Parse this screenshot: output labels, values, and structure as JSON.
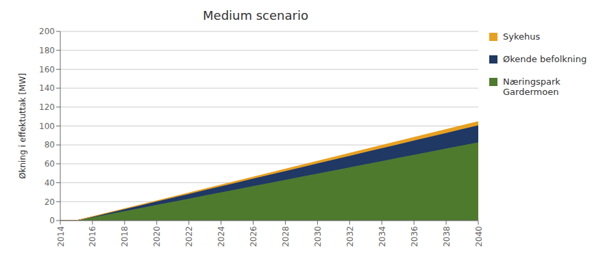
{
  "chart_data": {
    "type": "area",
    "stacked": true,
    "title": "Medium scenario",
    "ylabel": "Økning i effektuttak  [MW]",
    "x": [
      2014,
      2015,
      2016,
      2017,
      2018,
      2019,
      2020,
      2021,
      2022,
      2023,
      2024,
      2025,
      2026,
      2027,
      2028,
      2029,
      2030,
      2031,
      2032,
      2033,
      2034,
      2035,
      2036,
      2037,
      2038,
      2039,
      2040
    ],
    "series": [
      {
        "name": "Næringspark\nGardermoen",
        "color": "#4e7a2e",
        "values": [
          0,
          0.0,
          3.31,
          6.62,
          9.93,
          13.24,
          16.54,
          19.85,
          23.16,
          26.47,
          29.78,
          33.09,
          36.4,
          39.71,
          43.02,
          46.32,
          49.63,
          52.94,
          56.25,
          59.56,
          62.87,
          66.18,
          69.49,
          72.8,
          76.1,
          79.41,
          82.72
        ]
      },
      {
        "name": "Økende befolkning",
        "color": "#1f3864",
        "values": [
          0,
          0.0,
          0.72,
          1.44,
          2.16,
          2.88,
          3.6,
          4.32,
          5.04,
          5.76,
          6.48,
          7.2,
          7.92,
          8.64,
          9.36,
          10.08,
          10.8,
          11.52,
          12.24,
          12.96,
          13.68,
          14.4,
          15.12,
          15.84,
          16.56,
          17.28,
          18.0
        ]
      },
      {
        "name": "Sykehus",
        "color": "#e8a020",
        "values": [
          0,
          0.0,
          0.16,
          0.32,
          0.48,
          0.64,
          0.8,
          0.96,
          1.12,
          1.28,
          1.44,
          1.6,
          1.76,
          1.92,
          2.08,
          2.24,
          2.4,
          2.56,
          2.72,
          2.88,
          3.04,
          3.2,
          3.36,
          3.52,
          3.68,
          3.84,
          4.0
        ]
      }
    ],
    "xlim": [
      2014,
      2040
    ],
    "ylim": [
      0,
      200
    ],
    "xticks": [
      2014,
      2016,
      2018,
      2020,
      2022,
      2024,
      2026,
      2028,
      2030,
      2032,
      2034,
      2036,
      2038,
      2040
    ],
    "yticks": [
      0,
      20,
      40,
      60,
      80,
      100,
      120,
      140,
      160,
      180,
      200
    ],
    "grid": true,
    "legend": "right"
  }
}
